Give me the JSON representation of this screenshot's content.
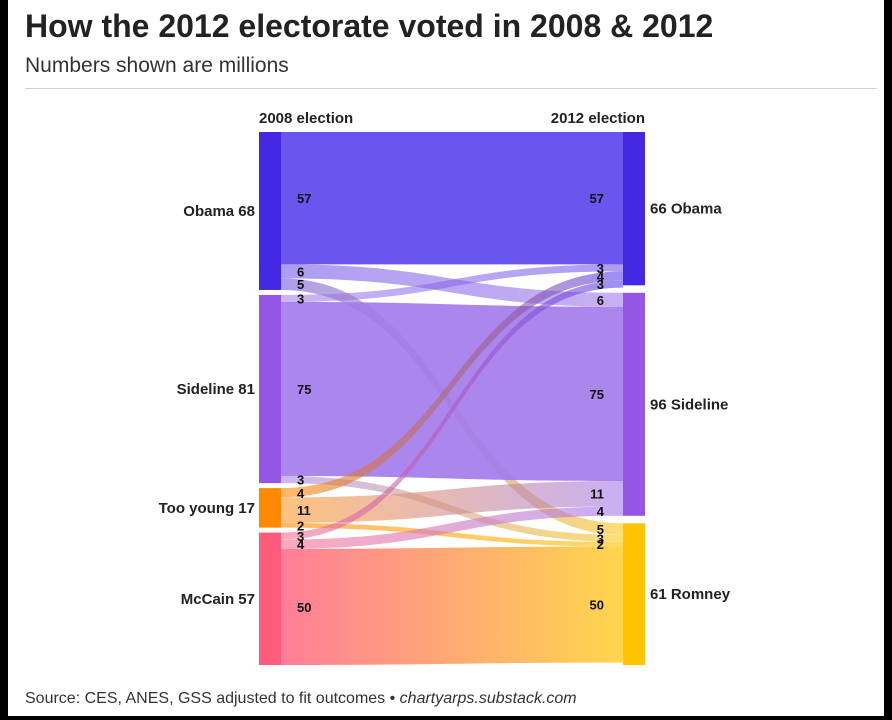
{
  "title": "How the 2012 electorate voted in 2008 & 2012",
  "subtitle": "Numbers shown are millions",
  "source": "Source: CES, ANES, GSS adjusted to fit outcomes • ",
  "source_site": "chartyarps.substack.com",
  "chart_data": {
    "type": "sankey",
    "unit": "millions",
    "left_header": "2008 election",
    "right_header": "2012 election",
    "left_nodes": [
      {
        "id": "obama08",
        "label": "Obama 68",
        "value": 68,
        "color": "#4427e0"
      },
      {
        "id": "sideline08",
        "label": "Sideline 81",
        "value": 81,
        "color": "#9457e5"
      },
      {
        "id": "young08",
        "label": "Too young 17",
        "value": 17,
        "color": "#ff8a00"
      },
      {
        "id": "mccain08",
        "label": "McCain 57",
        "value": 57,
        "color": "#ff5b7d"
      }
    ],
    "right_nodes": [
      {
        "id": "obama12",
        "label": "66 Obama",
        "value": 66,
        "color": "#4427e0"
      },
      {
        "id": "sideline12",
        "label": "96 Sideline",
        "value": 96,
        "color": "#9457e5"
      },
      {
        "id": "romney12",
        "label": "61 Romney",
        "value": 61,
        "color": "#ffc300"
      }
    ],
    "flows": [
      {
        "source": "obama08",
        "target": "obama12",
        "value": 57,
        "srcColor": "#5a43ec",
        "tgtColor": "#5a43ec",
        "opacity": 0.9
      },
      {
        "source": "obama08",
        "target": "sideline12",
        "value": 6,
        "srcColor": "#6a4ce6",
        "tgtColor": "#9a70e8",
        "opacity": 0.55
      },
      {
        "source": "obama08",
        "target": "romney12",
        "value": 5,
        "srcColor": "#6a4ce6",
        "tgtColor": "#ffc300",
        "opacity": 0.55
      },
      {
        "source": "sideline08",
        "target": "obama12",
        "value": 3,
        "srcColor": "#a078e8",
        "tgtColor": "#6a4ce6",
        "opacity": 0.55
      },
      {
        "source": "sideline08",
        "target": "sideline12",
        "value": 75,
        "srcColor": "#a27aeb",
        "tgtColor": "#a27aeb",
        "opacity": 0.9
      },
      {
        "source": "sideline08",
        "target": "romney12",
        "value": 3,
        "srcColor": "#a078e8",
        "tgtColor": "#ffc300",
        "opacity": 0.55
      },
      {
        "source": "young08",
        "target": "obama12",
        "value": 4,
        "srcColor": "#ff8a00",
        "tgtColor": "#5a43ec",
        "opacity": 0.6
      },
      {
        "source": "young08",
        "target": "sideline12",
        "value": 11,
        "srcColor": "#ff9a2a",
        "tgtColor": "#a27aeb",
        "opacity": 0.6
      },
      {
        "source": "young08",
        "target": "romney12",
        "value": 2,
        "srcColor": "#ff8a00",
        "tgtColor": "#ffc300",
        "opacity": 0.6
      },
      {
        "source": "mccain08",
        "target": "obama12",
        "value": 3,
        "srcColor": "#ff6f8e",
        "tgtColor": "#5a43ec",
        "opacity": 0.6
      },
      {
        "source": "mccain08",
        "target": "sideline12",
        "value": 4,
        "srcColor": "#ff6f8e",
        "tgtColor": "#a27aeb",
        "opacity": 0.6
      },
      {
        "source": "mccain08",
        "target": "romney12",
        "value": 50,
        "srcColor": "#ff6f8e",
        "tgtColor": "#ffd23a",
        "opacity": 0.9
      }
    ]
  }
}
